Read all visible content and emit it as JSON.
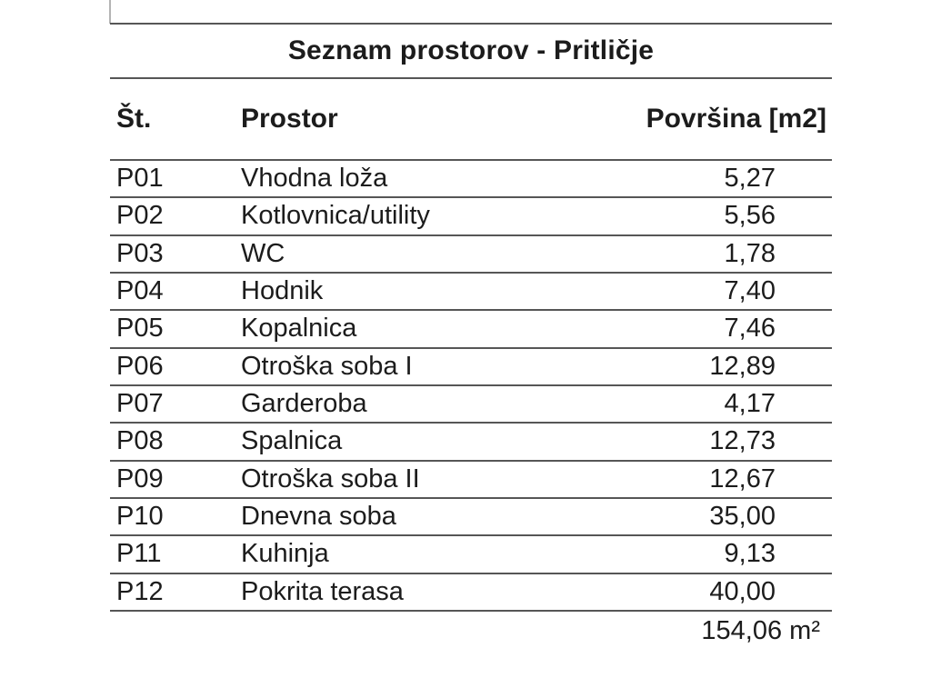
{
  "title": "Seznam prostorov - Pritličje",
  "table": {
    "columns": [
      "Št.",
      "Prostor",
      "Površina [m2]"
    ],
    "rows": [
      {
        "id": "P01",
        "name": "Vhodna loža",
        "area": "5,27"
      },
      {
        "id": "P02",
        "name": "Kotlovnica/utility",
        "area": "5,56"
      },
      {
        "id": "P03",
        "name": "WC",
        "area": "1,78"
      },
      {
        "id": "P04",
        "name": "Hodnik",
        "area": "7,40"
      },
      {
        "id": "P05",
        "name": "Kopalnica",
        "area": "7,46"
      },
      {
        "id": "P06",
        "name": "Otroška soba I",
        "area": "12,89"
      },
      {
        "id": "P07",
        "name": "Garderoba",
        "area": "4,17"
      },
      {
        "id": "P08",
        "name": "Spalnica",
        "area": "12,73"
      },
      {
        "id": "P09",
        "name": "Otroška soba II",
        "area": "12,67"
      },
      {
        "id": "P10",
        "name": "Dnevna soba",
        "area": "35,00"
      },
      {
        "id": "P11",
        "name": "Kuhinja",
        "area": "9,13"
      },
      {
        "id": "P12",
        "name": "Pokrita terasa",
        "area": "40,00"
      }
    ],
    "total": "154,06 m²"
  },
  "colors": {
    "text": "#1c1c1c",
    "line": "#565656",
    "background": "#ffffff"
  }
}
